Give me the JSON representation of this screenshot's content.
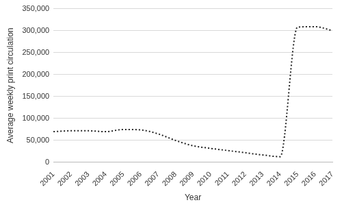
{
  "chart_data": {
    "type": "line",
    "x_label": "Year",
    "y_label": "Average weekly print circulation",
    "categories": [
      "2001",
      "2002",
      "2003",
      "2004",
      "2005",
      "2006",
      "2007",
      "2008",
      "2009",
      "2010",
      "2011",
      "2012",
      "2013",
      "2014",
      "2015",
      "2016",
      "2017"
    ],
    "values": [
      70000,
      72000,
      72000,
      70000,
      75000,
      74000,
      65000,
      50000,
      38000,
      32000,
      27000,
      22000,
      17000,
      13000,
      308000,
      309000,
      300000
    ],
    "color": "#222222",
    "line_style": "dotted",
    "ylim": [
      0,
      350000
    ],
    "yticks": [
      0,
      {
        "value": 50000,
        "label": "50,000"
      },
      {
        "value": 100000,
        "label": "100,000"
      },
      {
        "value": 150000,
        "label": "150,000"
      },
      {
        "value": 200000,
        "label": "200,000"
      },
      {
        "value": 250000,
        "label": "250,000"
      },
      {
        "value": 300000,
        "label": "300,000"
      },
      {
        "value": 350000,
        "label": "350,000"
      }
    ],
    "grid": true
  }
}
